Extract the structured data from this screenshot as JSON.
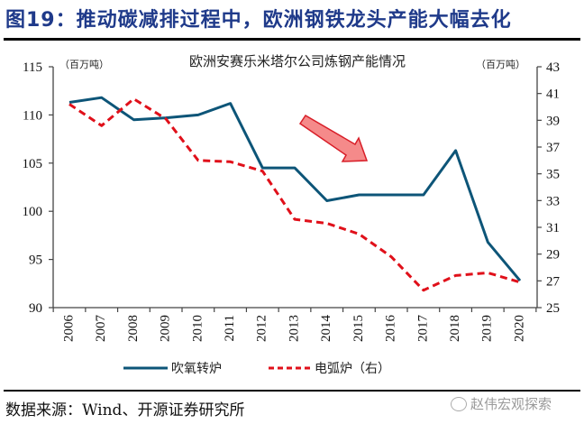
{
  "header": {
    "figure_title": "图19：推动碳减排过程中，欧洲钢铁龙头产能大幅去化"
  },
  "footer": {
    "source": "数据来源：Wind、开源证券研究所",
    "watermark": "赵伟宏观探索"
  },
  "colors": {
    "title": "#1f3a8a",
    "bof": "#0d5578",
    "eaf": "#e0101a",
    "arrow_fill": "#f58a8a",
    "arrow_stroke": "#d81e28"
  },
  "chart_data": {
    "type": "line",
    "title": "欧洲安赛乐米塔尔公司炼钢产能情况",
    "left_unit": "（百万吨）",
    "right_unit": "（百万吨）",
    "x": [
      "2006",
      "2007",
      "2008",
      "2009",
      "2010",
      "2011",
      "2012",
      "2013",
      "2014",
      "2015",
      "2016",
      "2017",
      "2018",
      "2019",
      "2020"
    ],
    "left_axis": {
      "ylim": [
        90,
        115
      ],
      "ticks": [
        "90",
        "95",
        "100",
        "105",
        "110",
        "115"
      ]
    },
    "right_axis": {
      "ylim": [
        25,
        43
      ],
      "ticks": [
        "25",
        "27",
        "29",
        "31",
        "33",
        "35",
        "37",
        "39",
        "41",
        "43"
      ]
    },
    "series": [
      {
        "name": "吹氧转炉",
        "axis": "left",
        "style": "solid",
        "values": [
          111.3,
          111.8,
          109.5,
          109.7,
          110.0,
          111.2,
          104.5,
          104.5,
          101.1,
          101.7,
          101.7,
          101.7,
          106.3,
          96.8,
          92.8
        ]
      },
      {
        "name": "电弧炉（右）",
        "axis": "right",
        "style": "dashed",
        "values": [
          40.2,
          38.6,
          40.6,
          39.1,
          36.0,
          35.9,
          35.2,
          31.6,
          31.3,
          30.5,
          28.8,
          26.3,
          27.4,
          27.6,
          26.9
        ]
      }
    ],
    "annotation": "downward-trend-arrow",
    "legend_position": "bottom",
    "grid": false
  }
}
